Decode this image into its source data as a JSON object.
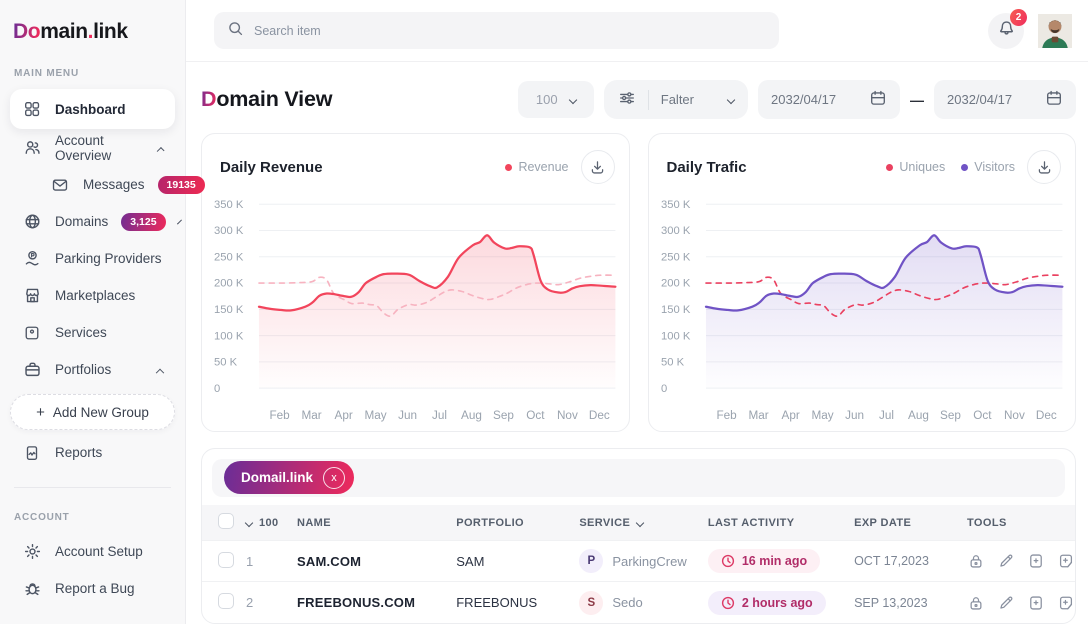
{
  "brand": {
    "logo_do": "Do",
    "logo_main": "main",
    "logo_dot": ".",
    "logo_link": "link"
  },
  "topbar": {
    "search_placeholder": "Search item",
    "notification_count": "2"
  },
  "sidebar": {
    "main_menu_label": "MAIN MENU",
    "account_label": "ACCOUNT",
    "dashboard": "Dashboard",
    "account_overview": "Account Overview",
    "messages": "Messages",
    "messages_badge": "19135",
    "domains": "Domains",
    "domains_badge": "3,125",
    "parking_providers": "Parking Providers",
    "marketplaces": "Marketplaces",
    "services": "Services",
    "portfolios": "Portfolios",
    "add_new_group_plus": "+",
    "add_new_group": "Add New Group",
    "reports": "Reports",
    "account_setup": "Account Setup",
    "report_a_bug": "Report a Bug"
  },
  "page_header": {
    "title_initial": "D",
    "title_rest": "omain View",
    "page_size": "100",
    "filter_label": "Falter",
    "date_from": "2032/04/17",
    "date_separator": "—",
    "date_to": "2032/04/17"
  },
  "chart_data": [
    {
      "type": "line",
      "title": "Daily Revenue",
      "x_labels": [
        "Feb",
        "Mar",
        "Apr",
        "May",
        "Jun",
        "Jul",
        "Aug",
        "Sep",
        "Oct",
        "Nov",
        "Dec"
      ],
      "y_ticks": [
        "350 K",
        "300 K",
        "250 K",
        "200 K",
        "150 K",
        "100 K",
        "50 K",
        "0"
      ],
      "ylim": [
        0,
        350
      ],
      "unit": "K",
      "grid": true,
      "legend": [
        {
          "label": "Revenue",
          "color": "#f2455c"
        }
      ],
      "series": [
        {
          "name": "Revenue",
          "color": "#f2455c",
          "style": "solid",
          "area": true,
          "monthly_values_k": {
            "Feb": 149,
            "Mar": 165,
            "Apr": 175,
            "May": 212,
            "Jun": 216,
            "Jul": 194,
            "Aug": 282,
            "Sep": 266,
            "Oct": 200,
            "Nov": 194,
            "Dec": 193
          },
          "points": [
            [
              0,
              155
            ],
            [
              0.03,
              151
            ],
            [
              0.06,
              149
            ],
            [
              0.09,
              148
            ],
            [
              0.13,
              155
            ],
            [
              0.15,
              163
            ],
            [
              0.17,
              176
            ],
            [
              0.19,
              180
            ],
            [
              0.21,
              179
            ],
            [
              0.24,
              175
            ],
            [
              0.26,
              174
            ],
            [
              0.28,
              183
            ],
            [
              0.3,
              200
            ],
            [
              0.33,
              212
            ],
            [
              0.35,
              217
            ],
            [
              0.38,
              218
            ],
            [
              0.42,
              216
            ],
            [
              0.45,
              204
            ],
            [
              0.48,
              194
            ],
            [
              0.5,
              192
            ],
            [
              0.53,
              212
            ],
            [
              0.56,
              248
            ],
            [
              0.6,
              272
            ],
            [
              0.62,
              278
            ],
            [
              0.64,
              291
            ],
            [
              0.66,
              277
            ],
            [
              0.69,
              266
            ],
            [
              0.71,
              267
            ],
            [
              0.73,
              270
            ],
            [
              0.76,
              268
            ],
            [
              0.77,
              255
            ],
            [
              0.79,
              205
            ],
            [
              0.81,
              188
            ],
            [
              0.84,
              182
            ],
            [
              0.86,
              183
            ],
            [
              0.88,
              190
            ],
            [
              0.9,
              194
            ],
            [
              0.93,
              196
            ],
            [
              0.96,
              195
            ],
            [
              1,
              193
            ]
          ]
        },
        {
          "name": "Revenue comparison",
          "color": "#f7b3c0",
          "style": "dashed",
          "area": false,
          "monthly_values_k": {
            "Feb": 200,
            "Mar": 203,
            "Apr": 168,
            "May": 157,
            "Jun": 159,
            "Jul": 183,
            "Aug": 170,
            "Sep": 180,
            "Oct": 200,
            "Nov": 209,
            "Dec": 215
          },
          "points": [
            [
              0,
              200
            ],
            [
              0.06,
              200
            ],
            [
              0.12,
              201
            ],
            [
              0.15,
              203
            ],
            [
              0.17,
              211
            ],
            [
              0.19,
              206
            ],
            [
              0.21,
              180
            ],
            [
              0.24,
              168
            ],
            [
              0.26,
              161
            ],
            [
              0.29,
              162
            ],
            [
              0.31,
              159
            ],
            [
              0.33,
              157
            ],
            [
              0.35,
              143
            ],
            [
              0.37,
              137
            ],
            [
              0.39,
              150
            ],
            [
              0.42,
              159
            ],
            [
              0.44,
              158
            ],
            [
              0.47,
              163
            ],
            [
              0.5,
              175
            ],
            [
              0.52,
              183
            ],
            [
              0.54,
              187
            ],
            [
              0.57,
              184
            ],
            [
              0.6,
              176
            ],
            [
              0.63,
              170
            ],
            [
              0.65,
              169
            ],
            [
              0.68,
              176
            ],
            [
              0.7,
              182
            ],
            [
              0.72,
              190
            ],
            [
              0.75,
              197
            ],
            [
              0.78,
              200
            ],
            [
              0.81,
              199
            ],
            [
              0.84,
              197
            ],
            [
              0.87,
              202
            ],
            [
              0.9,
              209
            ],
            [
              0.93,
              213
            ],
            [
              0.96,
              215
            ],
            [
              1,
              215
            ]
          ]
        }
      ]
    },
    {
      "type": "line",
      "title": "Daily Trafic",
      "x_labels": [
        "Feb",
        "Mar",
        "Apr",
        "May",
        "Jun",
        "Jul",
        "Aug",
        "Sep",
        "Oct",
        "Nov",
        "Dec"
      ],
      "y_ticks": [
        "350 K",
        "300 K",
        "250 K",
        "200 K",
        "150 K",
        "100 K",
        "50 K",
        "0"
      ],
      "ylim": [
        0,
        350
      ],
      "unit": "K",
      "grid": true,
      "legend": [
        {
          "label": "Uniques",
          "color": "#ea4160"
        },
        {
          "label": "Visitors",
          "color": "#7053c5"
        }
      ],
      "series": [
        {
          "name": "Visitors",
          "color": "#7053c5",
          "style": "solid",
          "area": true,
          "monthly_values_k": {
            "Feb": 149,
            "Mar": 165,
            "Apr": 175,
            "May": 212,
            "Jun": 216,
            "Jul": 194,
            "Aug": 282,
            "Sep": 266,
            "Oct": 200,
            "Nov": 194,
            "Dec": 193
          },
          "points": [
            [
              0,
              155
            ],
            [
              0.03,
              151
            ],
            [
              0.06,
              149
            ],
            [
              0.09,
              148
            ],
            [
              0.13,
              155
            ],
            [
              0.15,
              163
            ],
            [
              0.17,
              176
            ],
            [
              0.19,
              180
            ],
            [
              0.21,
              179
            ],
            [
              0.24,
              175
            ],
            [
              0.26,
              174
            ],
            [
              0.28,
              183
            ],
            [
              0.3,
              200
            ],
            [
              0.33,
              212
            ],
            [
              0.35,
              217
            ],
            [
              0.38,
              218
            ],
            [
              0.42,
              216
            ],
            [
              0.45,
              204
            ],
            [
              0.48,
              194
            ],
            [
              0.5,
              192
            ],
            [
              0.53,
              212
            ],
            [
              0.56,
              248
            ],
            [
              0.6,
              272
            ],
            [
              0.62,
              278
            ],
            [
              0.64,
              291
            ],
            [
              0.66,
              277
            ],
            [
              0.69,
              266
            ],
            [
              0.71,
              267
            ],
            [
              0.73,
              270
            ],
            [
              0.76,
              268
            ],
            [
              0.77,
              255
            ],
            [
              0.79,
              205
            ],
            [
              0.81,
              188
            ],
            [
              0.84,
              182
            ],
            [
              0.86,
              183
            ],
            [
              0.88,
              190
            ],
            [
              0.9,
              194
            ],
            [
              0.93,
              196
            ],
            [
              0.96,
              195
            ],
            [
              1,
              193
            ]
          ]
        },
        {
          "name": "Uniques",
          "color": "#ea4160",
          "style": "dashed",
          "area": false,
          "monthly_values_k": {
            "Feb": 200,
            "Mar": 203,
            "Apr": 168,
            "May": 157,
            "Jun": 159,
            "Jul": 183,
            "Aug": 170,
            "Sep": 180,
            "Oct": 200,
            "Nov": 209,
            "Dec": 215
          },
          "points": [
            [
              0,
              200
            ],
            [
              0.06,
              200
            ],
            [
              0.12,
              201
            ],
            [
              0.15,
              203
            ],
            [
              0.17,
              211
            ],
            [
              0.19,
              206
            ],
            [
              0.21,
              180
            ],
            [
              0.24,
              168
            ],
            [
              0.26,
              161
            ],
            [
              0.29,
              162
            ],
            [
              0.31,
              159
            ],
            [
              0.33,
              157
            ],
            [
              0.35,
              143
            ],
            [
              0.37,
              137
            ],
            [
              0.39,
              150
            ],
            [
              0.42,
              159
            ],
            [
              0.44,
              158
            ],
            [
              0.47,
              163
            ],
            [
              0.5,
              175
            ],
            [
              0.52,
              183
            ],
            [
              0.54,
              187
            ],
            [
              0.57,
              184
            ],
            [
              0.6,
              176
            ],
            [
              0.63,
              170
            ],
            [
              0.65,
              169
            ],
            [
              0.68,
              176
            ],
            [
              0.7,
              182
            ],
            [
              0.72,
              190
            ],
            [
              0.75,
              197
            ],
            [
              0.78,
              200
            ],
            [
              0.81,
              199
            ],
            [
              0.84,
              197
            ],
            [
              0.87,
              202
            ],
            [
              0.9,
              209
            ],
            [
              0.93,
              213
            ],
            [
              0.96,
              215
            ],
            [
              1,
              215
            ]
          ]
        }
      ]
    }
  ],
  "table": {
    "filter_tag": "Domail.link",
    "remove_tag_symbol": "x",
    "header": {
      "count": "100",
      "name": "NAME",
      "portfolio": "PORTFOLIO",
      "service": "SERVICE",
      "last_activity": "LAST ACTIVITY",
      "exp_date": "EXP DATE",
      "tools": "TOOLS"
    },
    "rows": [
      {
        "num": "1",
        "name": "SAM.COM",
        "portfolio": "SAM",
        "service_initial": "P",
        "service": "ParkingCrew",
        "last_activity": "16 min ago",
        "exp_date": "OCT 17,2023"
      },
      {
        "num": "2",
        "name": "FREEBONUS.COM",
        "portfolio": "FREEBONUS",
        "service_initial": "S",
        "service": "Sedo",
        "last_activity": "2 hours ago",
        "exp_date": "SEP 13,2023"
      }
    ]
  },
  "colors": {
    "brand_gradient_start": "#732d92",
    "brand_gradient_end": "#ee2a5b",
    "revenue_line": "#f2455c",
    "revenue_compare_line": "#f7b3c0",
    "uniques_line": "#ea4160",
    "visitors_line": "#7053c5",
    "notification_badge": "#ef2d5e"
  }
}
